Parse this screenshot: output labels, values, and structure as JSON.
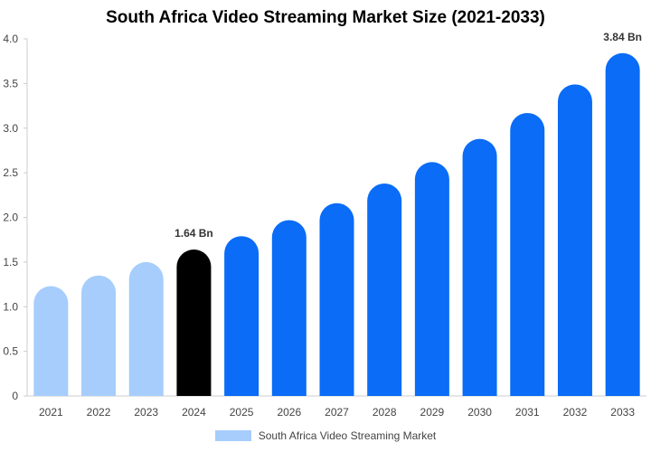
{
  "chart_data": {
    "type": "bar",
    "title": "South Africa Video Streaming Market Size (2021-2033)",
    "categories": [
      "2021",
      "2022",
      "2023",
      "2024",
      "2025",
      "2026",
      "2027",
      "2028",
      "2029",
      "2030",
      "2031",
      "2032",
      "2033"
    ],
    "values": [
      1.23,
      1.35,
      1.5,
      1.64,
      1.79,
      1.97,
      2.16,
      2.38,
      2.62,
      2.88,
      3.17,
      3.49,
      3.84
    ],
    "colors": [
      "#a6cdfb",
      "#a6cdfb",
      "#a6cdfb",
      "#000000",
      "#0a6cf7",
      "#0a6cf7",
      "#0a6cf7",
      "#0a6cf7",
      "#0a6cf7",
      "#0a6cf7",
      "#0a6cf7",
      "#0a6cf7",
      "#0a6cf7"
    ],
    "data_labels": [
      {
        "category": "2024",
        "text": "1.64 Bn"
      },
      {
        "category": "2033",
        "text": "3.84 Bn"
      }
    ],
    "ylim": [
      0,
      4.0
    ],
    "yticks": [
      0,
      0.5,
      1.0,
      1.5,
      2.0,
      2.5,
      3.0,
      3.5,
      4.0
    ],
    "ytick_labels": [
      "0",
      "0.5",
      "1.0",
      "1.5",
      "2.0",
      "2.5",
      "3.0",
      "3.5",
      "4.0"
    ],
    "legend": {
      "label": "South Africa Video Streaming Market",
      "color": "#a6cdfb",
      "position": "bottom"
    },
    "grid": false
  }
}
